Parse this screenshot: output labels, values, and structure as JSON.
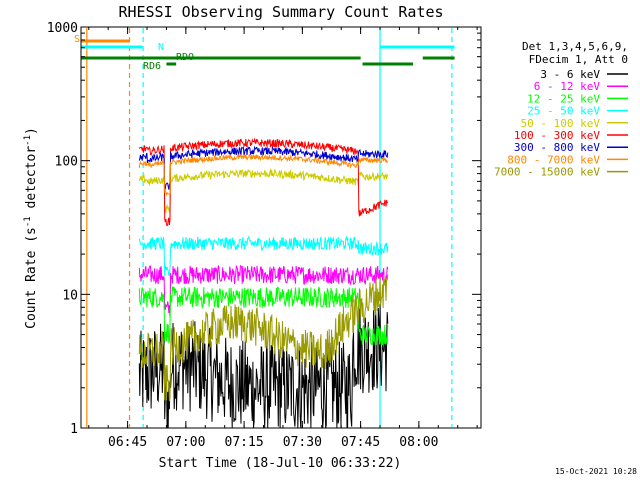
{
  "chart_data": {
    "type": "line",
    "title": "RHESSI Observing Summary Count Rates",
    "xlabel": "Start Time (18-Jul-10 06:33:22)",
    "ylabel_main": "Count Rate (s",
    "ylabel_sup1": "-1",
    "ylabel_mid": " detector",
    "ylabel_sup2": "-1",
    "ylabel_end": ")",
    "yscale": "log",
    "ylim": [
      1,
      1000
    ],
    "xlim_minutes": [
      0,
      103
    ],
    "x_ticks": [
      {
        "t": 12,
        "label": "06:45"
      },
      {
        "t": 27,
        "label": "07:00"
      },
      {
        "t": 42,
        "label": "07:15"
      },
      {
        "t": 57,
        "label": "07:30"
      },
      {
        "t": 72,
        "label": "07:45"
      },
      {
        "t": 87,
        "label": "08:00"
      }
    ],
    "y_ticks": [
      {
        "v": 1,
        "label": "1"
      },
      {
        "v": 10,
        "label": "10"
      },
      {
        "v": 100,
        "label": "100"
      },
      {
        "v": 1000,
        "label": "1000"
      }
    ],
    "legend_header": [
      "Det 1,3,4,5,6,9,",
      "FDecim 1, Att 0"
    ],
    "series": [
      {
        "name": "3 - 6 keV",
        "color": "#000000",
        "base": 2.5,
        "noise": 0.35,
        "shape": "floor"
      },
      {
        "name": "6 - 12 keV",
        "color": "#ff00ff",
        "base": 14,
        "noise": 0.07,
        "shape": "flat"
      },
      {
        "name": "12 - 25 keV",
        "color": "#00ff00",
        "base": 9.5,
        "noise": 0.08,
        "shape": "flat"
      },
      {
        "name": "25 - 50 keV",
        "color": "#00ffff",
        "base": 24,
        "noise": 0.05,
        "shape": "flat"
      },
      {
        "name": "50 - 100 keV",
        "color": "#cccc00",
        "base": 68,
        "noise": 0.03,
        "shape": "arch"
      },
      {
        "name": "100 - 300 keV",
        "color": "#ff0000",
        "base": 115,
        "noise": 0.03,
        "shape": "arch"
      },
      {
        "name": "300 - 800 keV",
        "color": "#0000cc",
        "base": 100,
        "noise": 0.03,
        "shape": "arch"
      },
      {
        "name": "800 - 7000 keV",
        "color": "#ff8800",
        "base": 90,
        "noise": 0.02,
        "shape": "arch"
      },
      {
        "name": "7000 - 15000 keV",
        "color": "#999900",
        "base": 4,
        "noise": 0.15,
        "shape": "hump"
      }
    ],
    "data_range_minutes": [
      15,
      79
    ],
    "vlines": [
      {
        "t": 1.5,
        "color": "#ff8800",
        "style": "solid"
      },
      {
        "t": 12.5,
        "color": "#ff8800",
        "style": "dashed"
      },
      {
        "t": 16,
        "color": "#00ffff",
        "style": "dashed"
      },
      {
        "t": 77,
        "color": "#00ffff",
        "style": "solid"
      },
      {
        "t": 95.5,
        "color": "#00ffff",
        "style": "dashed"
      }
    ],
    "flag_bars": [
      {
        "label": "S",
        "color": "#ff8800",
        "segments": [
          [
            0,
            12.5
          ]
        ]
      },
      {
        "label": "N",
        "color": "#00ffff",
        "segments": [
          [
            0,
            15.8
          ],
          [
            77,
            96.2
          ]
        ]
      },
      {
        "label": "RDO",
        "color": "#008000",
        "segments": [
          [
            0,
            72
          ],
          [
            88,
            96.2
          ]
        ]
      },
      {
        "label": "RD6",
        "color": "#008000",
        "segments": [
          [
            22,
            24.5
          ],
          [
            72.5,
            85.5
          ]
        ]
      }
    ],
    "timestamp": "15-Oct-2021 10:28"
  }
}
